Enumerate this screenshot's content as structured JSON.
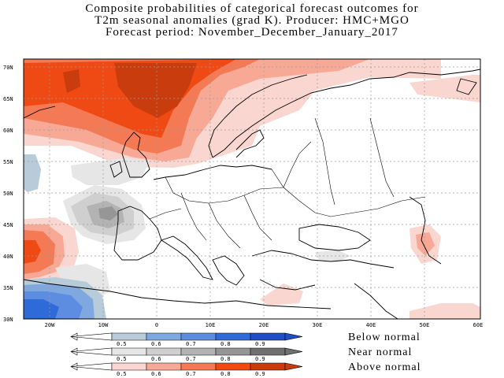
{
  "title": {
    "line1": "Composite probabilities of categorical forecast outcomes for",
    "line2": "T2m seasonal anomalies (grad K). Producer: HMC+MGO",
    "line3": "Forecast period:  November_December_January_2017"
  },
  "map": {
    "lat_labels": [
      "70N",
      "65N",
      "60N",
      "55N",
      "50N",
      "45N",
      "40N",
      "35N",
      "30N"
    ],
    "lon_labels": [
      "20W",
      "10W",
      "0",
      "10E",
      "20E",
      "30E",
      "40E",
      "50E",
      "60E"
    ]
  },
  "legend": {
    "ticks": [
      "0.5",
      "0.6",
      "0.7",
      "0.8",
      "0.9"
    ],
    "categories": [
      {
        "name": "Below normal",
        "colors": [
          "#b7ccd8",
          "#80a8e0",
          "#5d8de0",
          "#2f6bd8",
          "#1e4fc8"
        ]
      },
      {
        "name": "Near normal",
        "colors": [
          "#e6e6e6",
          "#cfcfcf",
          "#b3b3b3",
          "#969696",
          "#707070"
        ]
      },
      {
        "name": "Above normal",
        "colors": [
          "#f9d6cf",
          "#f7a996",
          "#f37a55",
          "#f04a14",
          "#c83c0e"
        ]
      }
    ]
  }
}
